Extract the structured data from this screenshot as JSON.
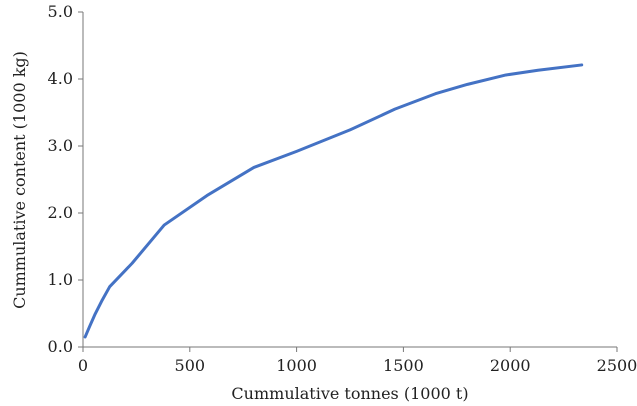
{
  "chart_data": {
    "type": "line",
    "xlabel": "Cummulative tonnes (1000 t)",
    "ylabel": "Cummulative content (1000 kg)",
    "xlim": [
      0,
      2500
    ],
    "ylim": [
      0,
      5
    ],
    "x_ticks": [
      0,
      500,
      1000,
      1500,
      2000,
      2500
    ],
    "x_tick_labels": [
      "0",
      "500",
      "1000",
      "1500",
      "2000",
      "2500"
    ],
    "y_ticks": [
      0,
      1,
      2,
      3,
      4,
      5
    ],
    "y_tick_labels": [
      "0.0",
      "1.0",
      "2.0",
      "3.0",
      "4.0",
      "5.0"
    ],
    "grid": false,
    "legend": false,
    "line_color": "#4472c4",
    "series": [
      {
        "x": [
          10,
          30,
          55,
          90,
          125,
          230,
          380,
          580,
          800,
          1000,
          1250,
          1460,
          1650,
          1800,
          1980,
          2130,
          2335
        ],
        "y": [
          0.15,
          0.3,
          0.48,
          0.7,
          0.9,
          1.25,
          1.82,
          2.26,
          2.68,
          2.92,
          3.24,
          3.55,
          3.78,
          3.92,
          4.06,
          4.13,
          4.21
        ]
      }
    ]
  }
}
